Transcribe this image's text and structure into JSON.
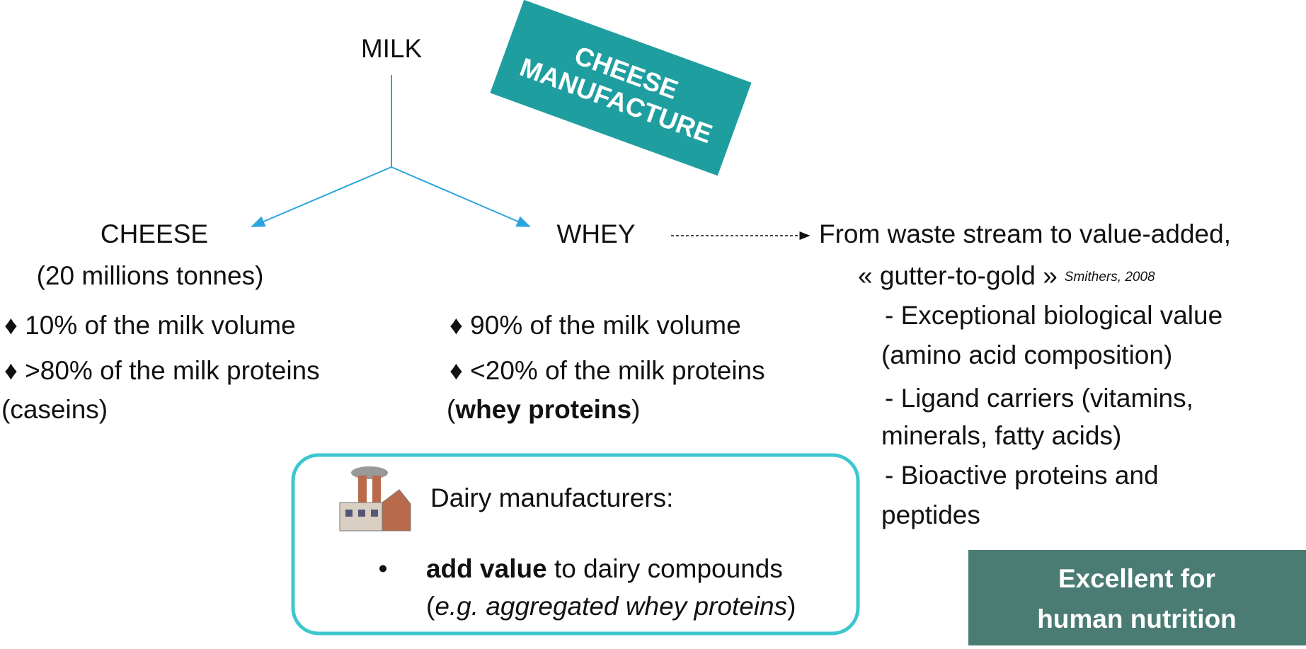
{
  "root": {
    "label": "MILK"
  },
  "banner": {
    "lines": [
      "CHEESE",
      "MANUFACTURE"
    ]
  },
  "cheese": {
    "label": "CHEESE",
    "amount": "(20 millions tonnes)",
    "facts": [
      "♦ 10% of the milk volume",
      "♦ >80% of the milk proteins",
      "(caseins)"
    ]
  },
  "whey": {
    "label": "WHEY",
    "facts": [
      "♦ 90% of the milk volume",
      "♦ <20% of the milk proteins"
    ],
    "facts_last": {
      "before": "(",
      "bold": "whey proteins",
      "after": ")"
    }
  },
  "valorization": {
    "headline": "From waste stream to value-added,",
    "quote": "« gutter-to-gold »",
    "citation": "Smithers, 2008",
    "points": [
      "- Exceptional biological value",
      "(amino acid composition)",
      "- Ligand carriers (vitamins,",
      "minerals, fatty acids)",
      "- Bioactive proteins and",
      "peptides"
    ]
  },
  "manufacturers": {
    "title": "Dairy manufacturers:",
    "bullet": "•",
    "item": {
      "bold": "add value",
      "rest": " to dairy compounds"
    },
    "example": {
      "before": "(",
      "italic": "e.g. aggregated whey proteins",
      "after": ")"
    }
  },
  "conclusion": {
    "lines": [
      "Excellent for",
      "human nutrition"
    ]
  }
}
